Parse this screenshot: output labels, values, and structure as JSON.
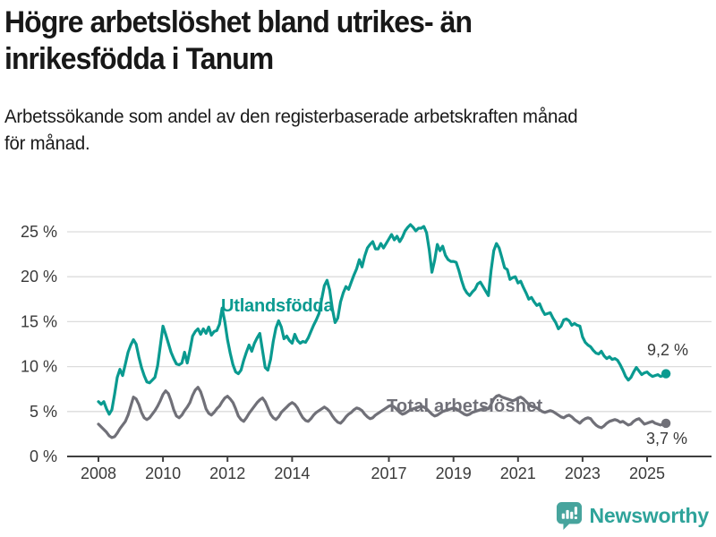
{
  "header": {
    "title_lines": [
      "Högre arbetslöshet bland utrikes- än",
      "inrikesfödda i Tanum"
    ],
    "subtitle_lines": [
      "Arbetssökande som andel av den registerbaserade arbetskraften månad",
      "för månad."
    ]
  },
  "footer": {
    "brand": "Newsworthy",
    "logo_icon": "speech-bubble-bar-chart-icon"
  },
  "colors": {
    "foreign_born_line": "#0A9A90",
    "total_line": "#707078",
    "gridline": "#DCDCDC",
    "axis": "#3F3F3F",
    "tick_text": "#3A3A3A",
    "annotation_text": "#3A3A3A",
    "brand_teal": "#2EA39A",
    "logo_badge": "#47A49D"
  },
  "chart_data": {
    "type": "line",
    "title": "Högre arbetslöshet bland utrikes- än inrikesfödda i Tanum",
    "subtitle": "Arbetssökande som andel av den registerbaserade arbetskraften månad för månad.",
    "x_unit": "month",
    "x_start": "2008-01",
    "x_end": "2025-08",
    "x_tick_years": [
      2008,
      2010,
      2012,
      2014,
      2017,
      2019,
      2021,
      2023,
      2025
    ],
    "x_tick_labels": [
      "2008",
      "2010",
      "2012",
      "2014",
      "2017",
      "2019",
      "2021",
      "2023",
      "2025"
    ],
    "y_ticks": [
      0,
      5,
      10,
      15,
      20,
      25
    ],
    "y_tick_labels": [
      "0 %",
      "5 %",
      "10 %",
      "15 %",
      "20 %",
      "25 %"
    ],
    "ylim": [
      0,
      26
    ],
    "grid": "horizontal",
    "legend": "inline-labels",
    "series": [
      {
        "name": "Utlandsfödda",
        "color": "#0A9A90",
        "end_label": "9,2 %",
        "end_value": 9.2,
        "values": [
          6.1,
          5.8,
          6.1,
          5.3,
          4.7,
          5.2,
          6.9,
          8.8,
          9.7,
          9.0,
          10.3,
          11.6,
          12.4,
          13.0,
          12.5,
          11.1,
          9.9,
          9.0,
          8.3,
          8.2,
          8.5,
          8.8,
          10.1,
          12.3,
          14.5,
          13.6,
          12.6,
          11.6,
          10.9,
          10.3,
          10.2,
          10.4,
          11.6,
          10.4,
          11.8,
          13.4,
          13.9,
          14.2,
          13.6,
          14.2,
          13.7,
          14.4,
          13.5,
          13.9,
          14.0,
          14.7,
          16.5,
          15.0,
          13.0,
          11.5,
          10.2,
          9.4,
          9.2,
          9.6,
          10.7,
          11.6,
          12.4,
          11.7,
          12.6,
          13.2,
          13.7,
          11.8,
          9.9,
          9.6,
          10.8,
          12.8,
          14.3,
          15.1,
          14.4,
          13.1,
          13.4,
          12.9,
          12.6,
          13.6,
          12.9,
          12.6,
          12.8,
          12.7,
          13.2,
          13.9,
          14.6,
          15.2,
          15.9,
          17.5,
          19.0,
          19.6,
          18.5,
          16.4,
          14.9,
          15.4,
          17.2,
          18.2,
          18.9,
          18.6,
          19.4,
          20.2,
          20.9,
          21.9,
          21.1,
          22.3,
          23.2,
          23.6,
          23.9,
          23.1,
          23.1,
          23.7,
          23.2,
          23.7,
          24.2,
          24.7,
          24.1,
          24.5,
          23.9,
          24.4,
          25.1,
          25.5,
          25.8,
          25.5,
          25.1,
          25.4,
          25.4,
          25.6,
          24.9,
          23.0,
          20.5,
          21.8,
          23.6,
          22.9,
          23.4,
          22.4,
          21.9,
          21.7,
          21.7,
          21.6,
          20.7,
          19.6,
          18.7,
          18.2,
          17.9,
          18.3,
          18.6,
          19.2,
          19.4,
          18.9,
          18.4,
          17.9,
          20.7,
          22.9,
          23.7,
          23.2,
          22.1,
          21.0,
          20.8,
          19.7,
          19.9,
          20.0,
          19.3,
          19.5,
          18.8,
          18.2,
          17.5,
          17.7,
          17.2,
          16.8,
          17.0,
          16.3,
          15.8,
          15.9,
          16.0,
          15.4,
          14.9,
          14.2,
          14.5,
          15.2,
          15.3,
          15.1,
          14.6,
          14.8,
          14.6,
          14.5,
          13.3,
          12.7,
          12.4,
          12.2,
          11.8,
          11.5,
          11.4,
          11.7,
          11.2,
          10.9,
          11.1,
          10.8,
          10.9,
          10.7,
          10.2,
          9.6,
          8.9,
          8.5,
          8.8,
          9.4,
          9.9,
          9.5,
          9.1,
          9.3,
          9.4,
          9.1,
          8.9,
          9.0,
          9.1,
          8.9,
          9.0,
          9.2
        ]
      },
      {
        "name": "Total arbetslöshet",
        "color": "#707078",
        "end_label": "3,7 %",
        "end_value": 3.7,
        "values": [
          3.6,
          3.3,
          3.0,
          2.7,
          2.3,
          2.1,
          2.2,
          2.6,
          3.1,
          3.5,
          3.9,
          4.6,
          5.6,
          6.6,
          6.4,
          5.8,
          4.9,
          4.3,
          4.1,
          4.3,
          4.7,
          5.1,
          5.6,
          6.2,
          6.9,
          7.3,
          7.0,
          6.2,
          5.2,
          4.5,
          4.3,
          4.6,
          5.1,
          5.5,
          6.0,
          6.8,
          7.4,
          7.7,
          7.2,
          6.3,
          5.3,
          4.8,
          4.6,
          4.9,
          5.3,
          5.6,
          6.1,
          6.5,
          6.7,
          6.4,
          6.0,
          5.3,
          4.5,
          4.1,
          3.9,
          4.3,
          4.8,
          5.2,
          5.6,
          6.0,
          6.3,
          6.5,
          6.1,
          5.4,
          4.7,
          4.3,
          4.1,
          4.4,
          4.9,
          5.2,
          5.5,
          5.8,
          6.0,
          5.8,
          5.4,
          4.8,
          4.3,
          4.0,
          3.9,
          4.2,
          4.6,
          4.9,
          5.1,
          5.3,
          5.5,
          5.3,
          5.0,
          4.5,
          4.1,
          3.8,
          3.7,
          4.0,
          4.4,
          4.7,
          4.9,
          5.2,
          5.4,
          5.3,
          5.1,
          4.7,
          4.4,
          4.2,
          4.3,
          4.6,
          4.8,
          5.0,
          5.2,
          5.4,
          5.6,
          5.7,
          5.5,
          5.2,
          4.9,
          4.7,
          4.8,
          5.0,
          5.2,
          5.3,
          5.4,
          5.5,
          5.6,
          5.5,
          5.3,
          5.0,
          4.7,
          4.5,
          4.6,
          4.8,
          5.0,
          5.1,
          5.2,
          5.3,
          5.4,
          5.3,
          5.1,
          4.9,
          4.7,
          4.6,
          4.7,
          4.9,
          5.0,
          5.1,
          5.2,
          5.3,
          5.4,
          5.3,
          5.8,
          6.4,
          6.7,
          6.8,
          6.6,
          6.5,
          6.4,
          6.3,
          6.2,
          6.3,
          6.5,
          6.6,
          6.4,
          6.1,
          5.8,
          5.6,
          5.5,
          5.4,
          5.2,
          5.0,
          4.9,
          5.0,
          5.1,
          5.0,
          4.8,
          4.6,
          4.4,
          4.3,
          4.5,
          4.6,
          4.4,
          4.1,
          3.9,
          3.7,
          4.0,
          4.2,
          4.3,
          4.2,
          3.8,
          3.5,
          3.3,
          3.2,
          3.4,
          3.7,
          3.9,
          4.0,
          4.1,
          4.0,
          3.8,
          3.9,
          3.7,
          3.5,
          3.6,
          3.9,
          4.1,
          4.2,
          3.9,
          3.6,
          3.7,
          3.8,
          3.9,
          3.7,
          3.6,
          3.5,
          3.6,
          3.7
        ]
      }
    ]
  }
}
